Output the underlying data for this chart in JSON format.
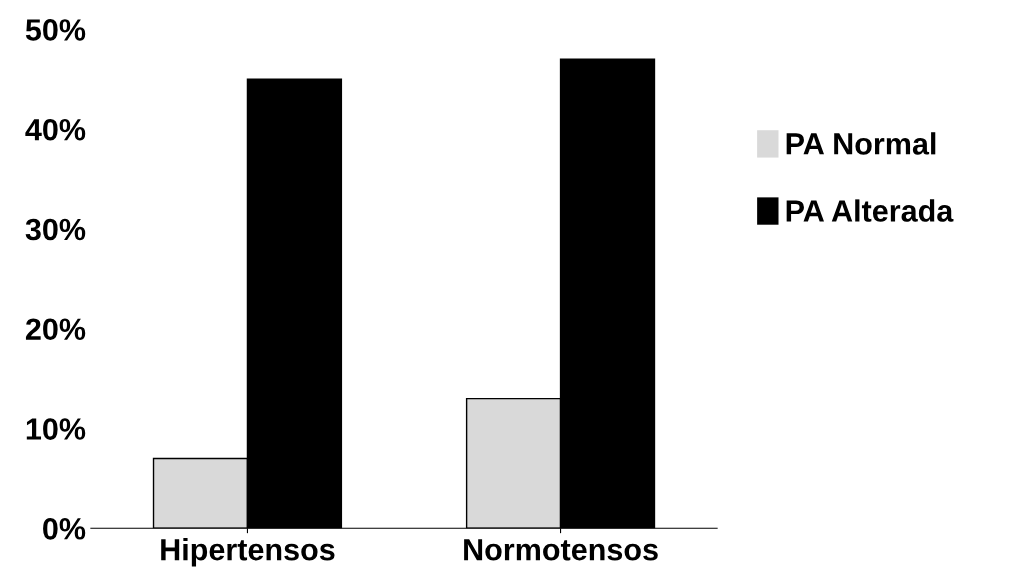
{
  "chart_data": {
    "type": "bar",
    "categories": [
      "Hipertensos",
      "Normotensos"
    ],
    "series": [
      {
        "name": "PA Normal",
        "color": "#d9d9d9",
        "values": [
          7,
          13
        ]
      },
      {
        "name": "PA Alterada",
        "color": "#000000",
        "values": [
          45,
          47
        ]
      }
    ],
    "ylim": [
      0,
      50
    ],
    "yticks": [
      {
        "value": 0,
        "label": "0%"
      },
      {
        "value": 10,
        "label": "10%"
      },
      {
        "value": 20,
        "label": "20%"
      },
      {
        "value": 30,
        "label": "30%"
      },
      {
        "value": 40,
        "label": "40%"
      },
      {
        "value": 50,
        "label": "50%"
      }
    ],
    "grid": false,
    "legend": "right"
  }
}
